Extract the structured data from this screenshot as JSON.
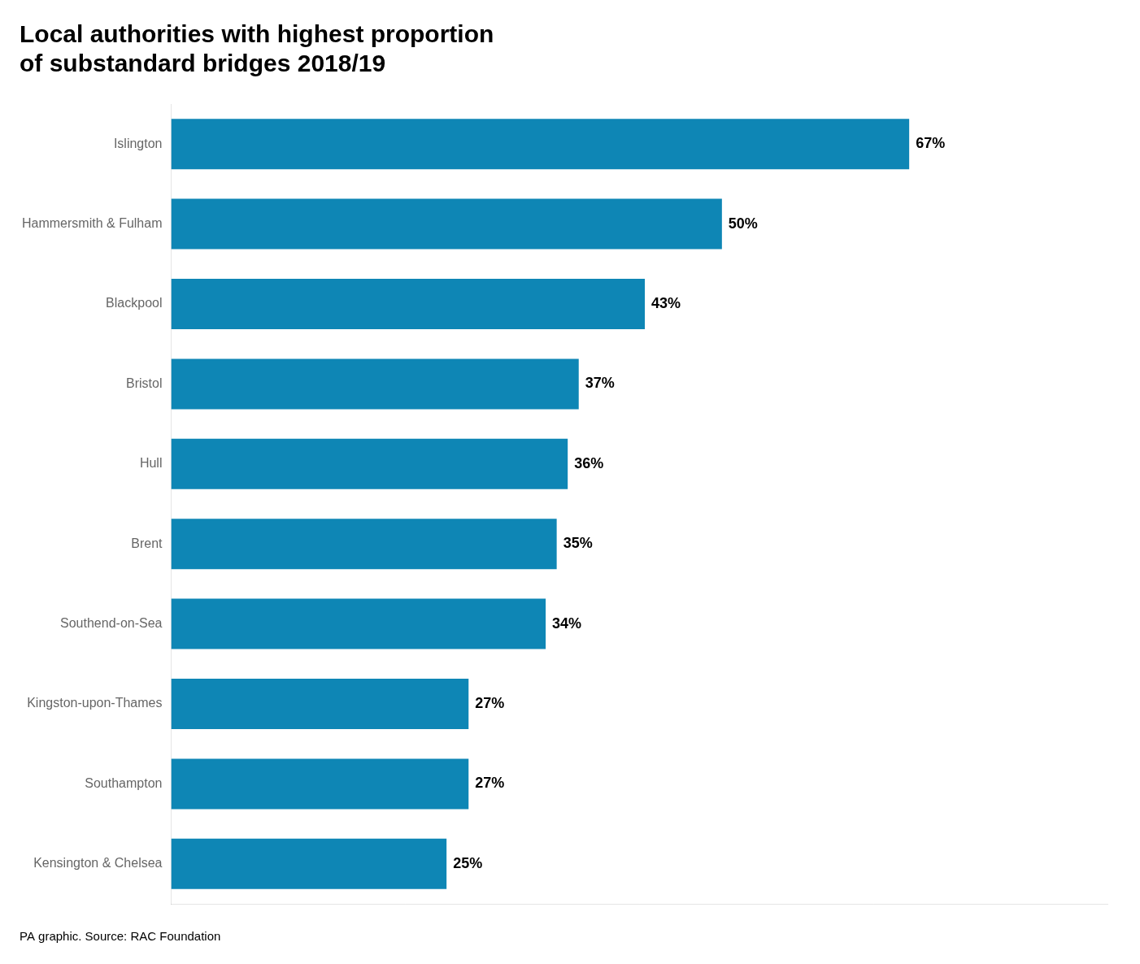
{
  "chart_data": {
    "type": "bar",
    "orientation": "horizontal",
    "title": "Local authorities with highest proportion\nof substandard bridges 2018/19",
    "annotations": [
      "PA graphic. Source: RAC Foundation"
    ],
    "categories": [
      "Islington",
      "Hammersmith & Fulham",
      "Blackpool",
      "Bristol",
      "Hull",
      "Brent",
      "Southend-on-Sea",
      "Kingston-upon-Thames",
      "Southampton",
      "Kensington & Chelsea"
    ],
    "values": [
      67,
      50,
      43,
      37,
      36,
      35,
      34,
      27,
      27,
      25
    ],
    "value_labels": [
      "67%",
      "50%",
      "43%",
      "37%",
      "36%",
      "35%",
      "34%",
      "27%",
      "27%",
      "25%"
    ],
    "data_labels": true,
    "color": "#0e86b5",
    "xlim": [
      0,
      85
    ],
    "tick_labels": "y",
    "grid": false
  }
}
